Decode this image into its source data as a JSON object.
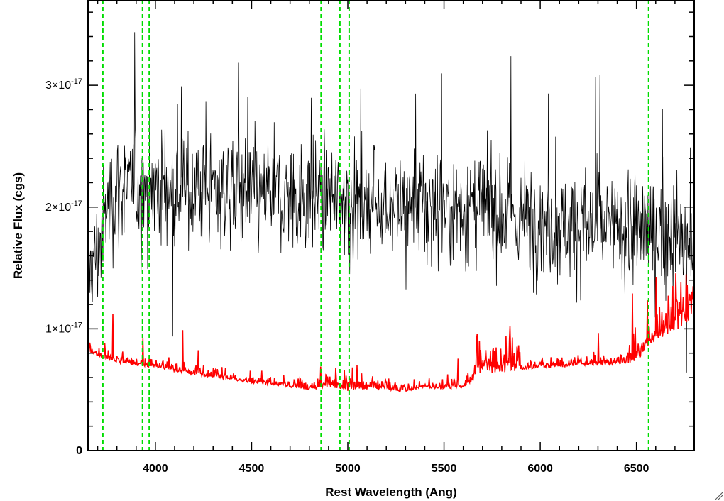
{
  "chart_data": {
    "type": "line",
    "title": "",
    "xlabel": "Rest Wavelength (Ang)",
    "ylabel": "Relative Flux (cgs)",
    "xlim": [
      3650,
      6800
    ],
    "ylim": [
      0,
      3.7e-17
    ],
    "x_ticks": [
      {
        "value": 4000,
        "label": "4000"
      },
      {
        "value": 4500,
        "label": "4500"
      },
      {
        "value": 5000,
        "label": "5000"
      },
      {
        "value": 5500,
        "label": "5500"
      },
      {
        "value": 6000,
        "label": "6000"
      },
      {
        "value": 6500,
        "label": "6500"
      }
    ],
    "y_ticks": [
      {
        "value": 0,
        "label": "0"
      },
      {
        "value": 1e-17,
        "label_mantissa": "1",
        "label_exponent": "-17"
      },
      {
        "value": 2e-17,
        "label_mantissa": "2",
        "label_exponent": "-17"
      },
      {
        "value": 3e-17,
        "label_mantissa": "3",
        "label_exponent": "-17"
      }
    ],
    "grid": false,
    "series": [
      {
        "color": "#000000",
        "style": "noisy spectrum",
        "x": [
          3650,
          3700,
          3750,
          3800,
          3900,
          4000,
          4100,
          4200,
          4300,
          4400,
          4500,
          4600,
          4700,
          4800,
          4900,
          5000,
          5100,
          5200,
          5300,
          5400,
          5500,
          5600,
          5700,
          5800,
          5900,
          6000,
          6100,
          6200,
          6300,
          6400,
          6500,
          6600,
          6700,
          6800
        ],
        "y": [
          1.5e-17,
          1.6e-17,
          2e-17,
          2.15e-17,
          2.15e-17,
          2.15e-17,
          2.15e-17,
          2.15e-17,
          2.15e-17,
          2.15e-17,
          2.1e-17,
          2.1e-17,
          2.1e-17,
          2.1e-17,
          2.1e-17,
          2.05e-17,
          2.05e-17,
          2.05e-17,
          2e-17,
          2e-17,
          2e-17,
          2e-17,
          2e-17,
          1.95e-17,
          1.9e-17,
          1.9e-17,
          1.85e-17,
          1.85e-17,
          1.85e-17,
          1.8e-17,
          1.8e-17,
          1.8e-17,
          1.8e-17,
          1.6e-17
        ]
      },
      {
        "color": "#ff0000",
        "style": "model spectrum",
        "x": [
          3650,
          3700,
          3750,
          3800,
          3900,
          4000,
          4100,
          4200,
          4300,
          4400,
          4500,
          4600,
          4700,
          4800,
          4900,
          5000,
          5100,
          5200,
          5300,
          5400,
          5500,
          5600,
          5700,
          5800,
          5900,
          6000,
          6100,
          6200,
          6300,
          6400,
          6500,
          6600,
          6700,
          6800
        ],
        "y": [
          8.1e-18,
          7.8e-18,
          7.4e-18,
          7.2e-18,
          7e-18,
          6.8e-18,
          6.5e-18,
          6.2e-18,
          6e-18,
          5.8e-18,
          5.5e-18,
          5.4e-18,
          5.2e-18,
          5e-18,
          5.2e-18,
          4.9e-18,
          5e-18,
          5e-18,
          4.8e-18,
          5.2e-18,
          5e-18,
          5.2e-18,
          6.2e-18,
          6.4e-18,
          6.6e-18,
          6.8e-18,
          6.8e-18,
          7e-18,
          7e-18,
          7.1e-18,
          7.3e-18,
          9e-18,
          9.8e-18,
          1.1e-17
        ]
      }
    ],
    "reference_lines": {
      "color": "#00dd00",
      "style": "dashed",
      "x": [
        3727,
        3933,
        3968,
        4861,
        4959,
        5007,
        6563
      ]
    }
  }
}
